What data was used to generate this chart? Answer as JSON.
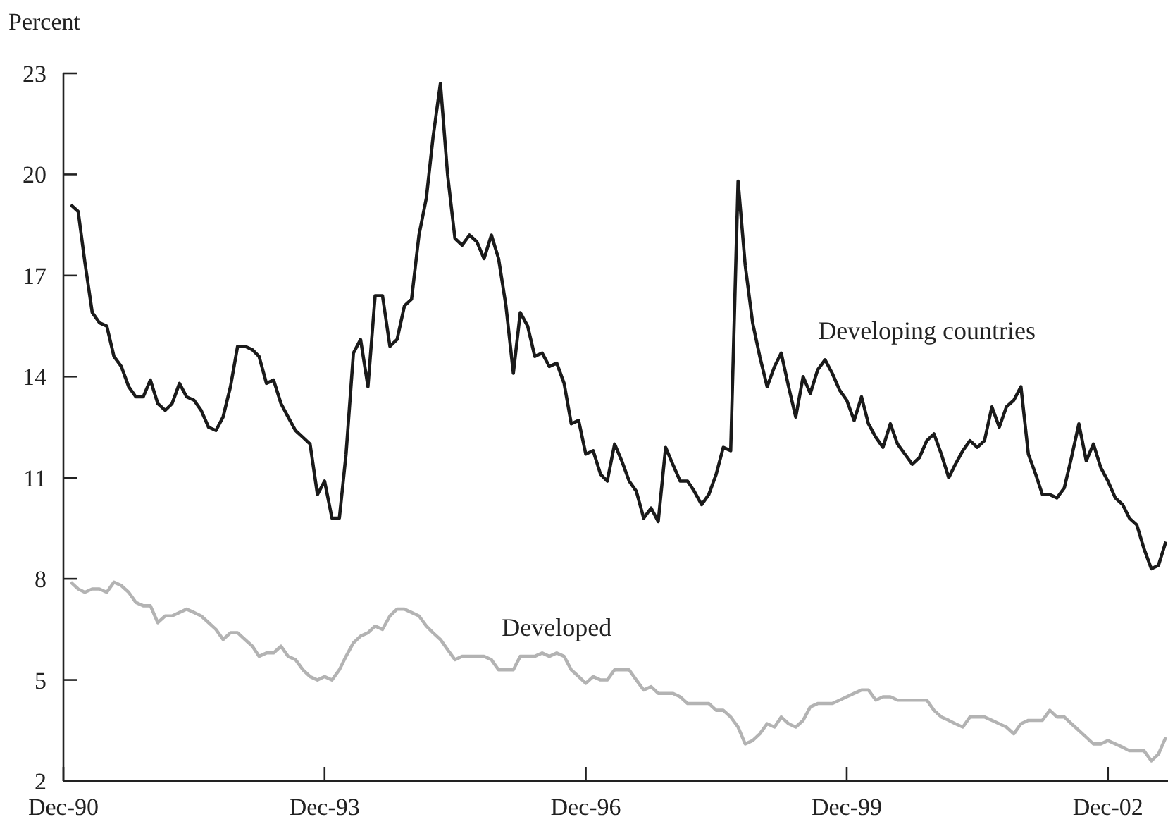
{
  "chart_data": {
    "type": "line",
    "ylabel": "Percent",
    "x": [
      "1991-01",
      "1991-02",
      "1991-03",
      "1991-04",
      "1991-05",
      "1991-06",
      "1991-07",
      "1991-08",
      "1991-09",
      "1991-10",
      "1991-11",
      "1991-12",
      "1992-01",
      "1992-02",
      "1992-03",
      "1992-04",
      "1992-05",
      "1992-06",
      "1992-07",
      "1992-08",
      "1992-09",
      "1992-10",
      "1992-11",
      "1992-12",
      "1993-01",
      "1993-02",
      "1993-03",
      "1993-04",
      "1993-05",
      "1993-06",
      "1993-07",
      "1993-08",
      "1993-09",
      "1993-10",
      "1993-11",
      "1993-12",
      "1994-01",
      "1994-02",
      "1994-03",
      "1994-04",
      "1994-05",
      "1994-06",
      "1994-07",
      "1994-08",
      "1994-09",
      "1994-10",
      "1994-11",
      "1994-12",
      "1995-01",
      "1995-02",
      "1995-03",
      "1995-04",
      "1995-05",
      "1995-06",
      "1995-07",
      "1995-08",
      "1995-09",
      "1995-10",
      "1995-11",
      "1995-12",
      "1996-01",
      "1996-02",
      "1996-03",
      "1996-04",
      "1996-05",
      "1996-06",
      "1996-07",
      "1996-08",
      "1996-09",
      "1996-10",
      "1996-11",
      "1996-12",
      "1997-01",
      "1997-02",
      "1997-03",
      "1997-04",
      "1997-05",
      "1997-06",
      "1997-07",
      "1997-08",
      "1997-09",
      "1997-10",
      "1997-11",
      "1997-12",
      "1998-01",
      "1998-02",
      "1998-03",
      "1998-04",
      "1998-05",
      "1998-06",
      "1998-07",
      "1998-08",
      "1998-09",
      "1998-10",
      "1998-11",
      "1998-12",
      "1999-01",
      "1999-02",
      "1999-03",
      "1999-04",
      "1999-05",
      "1999-06",
      "1999-07",
      "1999-08",
      "1999-09",
      "1999-10",
      "1999-11",
      "1999-12",
      "2000-01",
      "2000-02",
      "2000-03",
      "2000-04",
      "2000-05",
      "2000-06",
      "2000-07",
      "2000-08",
      "2000-09",
      "2000-10",
      "2000-11",
      "2000-12",
      "2001-01",
      "2001-02",
      "2001-03",
      "2001-04",
      "2001-05",
      "2001-06",
      "2001-07",
      "2001-08",
      "2001-09",
      "2001-10",
      "2001-11",
      "2001-12",
      "2002-01",
      "2002-02",
      "2002-03",
      "2002-04",
      "2002-05",
      "2002-06",
      "2002-07",
      "2002-08",
      "2002-09",
      "2002-10",
      "2002-11",
      "2002-12",
      "2003-01",
      "2003-02",
      "2003-03",
      "2003-04",
      "2003-05",
      "2003-06",
      "2003-07",
      "2003-08"
    ],
    "series": [
      {
        "name": "Developing countries",
        "color": "#1a1a1a",
        "values": [
          19.1,
          18.9,
          17.4,
          15.9,
          15.6,
          15.5,
          14.6,
          14.3,
          13.7,
          13.4,
          13.4,
          13.9,
          13.2,
          13.0,
          13.2,
          13.8,
          13.4,
          13.3,
          13.0,
          12.5,
          12.4,
          12.8,
          13.7,
          14.9,
          14.9,
          14.8,
          14.6,
          13.8,
          13.9,
          13.2,
          12.8,
          12.4,
          12.2,
          12.0,
          10.5,
          10.9,
          9.8,
          9.8,
          11.7,
          14.7,
          15.1,
          13.7,
          16.4,
          16.4,
          14.9,
          15.1,
          16.1,
          16.3,
          18.2,
          19.3,
          21.1,
          22.7,
          20.0,
          18.1,
          17.9,
          18.2,
          18.0,
          17.5,
          18.2,
          17.5,
          16.1,
          14.1,
          15.9,
          15.5,
          14.6,
          14.7,
          14.3,
          14.4,
          13.8,
          12.6,
          12.7,
          11.7,
          11.8,
          11.1,
          10.9,
          12.0,
          11.5,
          10.9,
          10.6,
          9.8,
          10.1,
          9.7,
          11.9,
          11.4,
          10.9,
          10.9,
          10.6,
          10.2,
          10.5,
          11.1,
          11.9,
          11.8,
          19.8,
          17.3,
          15.6,
          14.6,
          13.7,
          14.3,
          14.7,
          13.7,
          12.8,
          14.0,
          13.5,
          14.2,
          14.5,
          14.1,
          13.6,
          13.3,
          12.7,
          13.4,
          12.6,
          12.2,
          11.9,
          12.6,
          12.0,
          11.7,
          11.4,
          11.6,
          12.1,
          12.3,
          11.7,
          11.0,
          11.4,
          11.8,
          12.1,
          11.9,
          12.1,
          13.1,
          12.5,
          13.1,
          13.3,
          13.7,
          11.7,
          11.1,
          10.5,
          10.5,
          10.4,
          10.7,
          11.6,
          12.6,
          11.5,
          12.0,
          11.3,
          10.9,
          10.4,
          10.2,
          9.8,
          9.6,
          8.9,
          8.3,
          8.4,
          9.1
        ]
      },
      {
        "name": "Developed",
        "color": "#b3b3b3",
        "values": [
          7.9,
          7.7,
          7.6,
          7.7,
          7.7,
          7.6,
          7.9,
          7.8,
          7.6,
          7.3,
          7.2,
          7.2,
          6.7,
          6.9,
          6.9,
          7.0,
          7.1,
          7.0,
          6.9,
          6.7,
          6.5,
          6.2,
          6.4,
          6.4,
          6.2,
          6.0,
          5.7,
          5.8,
          5.8,
          6.0,
          5.7,
          5.6,
          5.3,
          5.1,
          5.0,
          5.1,
          5.0,
          5.3,
          5.7,
          6.1,
          6.3,
          6.4,
          6.6,
          6.5,
          6.9,
          7.1,
          7.1,
          7.0,
          6.9,
          6.6,
          6.4,
          6.2,
          5.9,
          5.6,
          5.7,
          5.7,
          5.7,
          5.7,
          5.6,
          5.3,
          5.3,
          5.3,
          5.7,
          5.7,
          5.7,
          5.8,
          5.7,
          5.8,
          5.7,
          5.3,
          5.1,
          4.9,
          5.1,
          5.0,
          5.0,
          5.3,
          5.3,
          5.3,
          5.0,
          4.7,
          4.8,
          4.6,
          4.6,
          4.6,
          4.5,
          4.3,
          4.3,
          4.3,
          4.3,
          4.1,
          4.1,
          3.9,
          3.6,
          3.1,
          3.2,
          3.4,
          3.7,
          3.6,
          3.9,
          3.7,
          3.6,
          3.8,
          4.2,
          4.3,
          4.3,
          4.3,
          4.4,
          4.5,
          4.6,
          4.7,
          4.7,
          4.4,
          4.5,
          4.5,
          4.4,
          4.4,
          4.4,
          4.4,
          4.4,
          4.1,
          3.9,
          3.8,
          3.7,
          3.6,
          3.9,
          3.9,
          3.9,
          3.8,
          3.7,
          3.6,
          3.4,
          3.7,
          3.8,
          3.8,
          3.8,
          4.1,
          3.9,
          3.9,
          3.7,
          3.5,
          3.3,
          3.1,
          3.1,
          3.2,
          3.1,
          3.0,
          2.9,
          2.9,
          2.9,
          2.6,
          2.8,
          3.3
        ]
      }
    ],
    "xlim": [
      "1990-12",
      "2003-08-10"
    ],
    "xticks": [
      {
        "value": "1990-12",
        "label": "Dec-90"
      },
      {
        "value": "1993-12",
        "label": "Dec-93"
      },
      {
        "value": "1996-12",
        "label": "Dec-96"
      },
      {
        "value": "1999-12",
        "label": "Dec-99"
      },
      {
        "value": "2002-12",
        "label": "Dec-02"
      }
    ],
    "ylim": [
      2,
      23
    ],
    "yticks": [
      2,
      5,
      8,
      11,
      14,
      17,
      20,
      23
    ],
    "marker": "none",
    "line_style": "solid"
  }
}
